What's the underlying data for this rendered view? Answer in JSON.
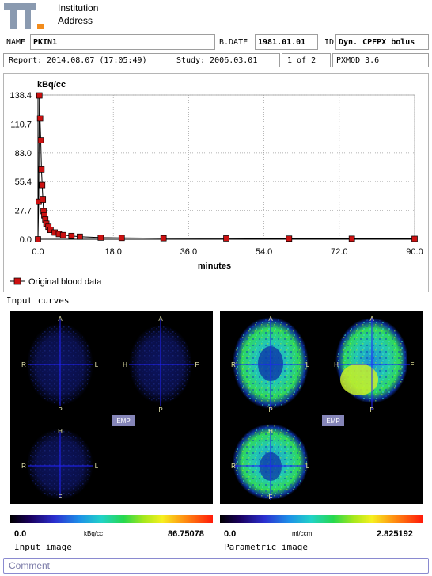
{
  "institution": {
    "name": "Institution",
    "address": "Address"
  },
  "patient": {
    "name_label": "NAME",
    "name": "PKIN1",
    "bdate_label": "B.DATE",
    "bdate": "1981.01.01",
    "id_label": "ID",
    "id": "Dyn. CPFPX bolus"
  },
  "report": {
    "report_text": "Report: 2014.08.07 (17:05:49)",
    "study_text": "Study: 2006.03.01",
    "page": "1 of 2",
    "software": "PXMOD 3.6"
  },
  "chart_data": {
    "type": "line",
    "ylabel": "kBq/cc",
    "xlabel": "minutes",
    "xlim": [
      0,
      90
    ],
    "ylim": [
      0,
      138.4
    ],
    "xticks": [
      "0.0",
      "18.0",
      "36.0",
      "54.0",
      "72.0",
      "90.0"
    ],
    "yticks": [
      "0.0",
      "27.7",
      "55.4",
      "83.0",
      "110.7",
      "138.4"
    ],
    "grid": true,
    "legend_position": "bottom-left",
    "series": [
      {
        "name": "Original blood data",
        "color": "#cc1111",
        "x": [
          0.0,
          0.17,
          0.33,
          0.5,
          0.67,
          0.83,
          1.0,
          1.17,
          1.33,
          1.5,
          1.75,
          2.0,
          2.5,
          3.0,
          4.0,
          5.0,
          6.0,
          8.0,
          10.0,
          15.0,
          20.0,
          30.0,
          45.0,
          60.0,
          75.0,
          90.0
        ],
        "y": [
          0.0,
          36.0,
          138.0,
          116.0,
          95.0,
          67.0,
          52.0,
          38.0,
          27.0,
          23.0,
          19.0,
          15.0,
          12.0,
          9.0,
          6.5,
          5.0,
          4.0,
          3.2,
          2.5,
          1.6,
          1.3,
          1.0,
          0.8,
          0.6,
          0.5,
          0.4
        ]
      }
    ]
  },
  "input_curves_label": "Input curves",
  "input_image": {
    "caption": "Input image",
    "min": "0.0",
    "max": "86.75078",
    "unit": "kBq/cc",
    "tag": "EMP",
    "views": {
      "axial": {
        "top": "A",
        "bottom": "P",
        "left": "R",
        "right": "L"
      },
      "sagittal": {
        "top": "A",
        "bottom": "P",
        "left": "H",
        "right": "F"
      },
      "coronal": {
        "top": "H",
        "bottom": "F",
        "left": "R",
        "right": "L"
      }
    }
  },
  "parametric_image": {
    "caption": "Parametric image",
    "min": "0.0",
    "max": "2.825192",
    "unit": "ml/ccm",
    "tag": "EMP",
    "views": {
      "axial": {
        "top": "A",
        "bottom": "P",
        "left": "R",
        "right": "L"
      },
      "sagittal": {
        "top": "A",
        "bottom": "P",
        "left": "H",
        "right": "F"
      },
      "coronal": {
        "top": "H",
        "bottom": "F",
        "left": "R",
        "right": "L"
      }
    }
  },
  "comment_placeholder": "Comment"
}
